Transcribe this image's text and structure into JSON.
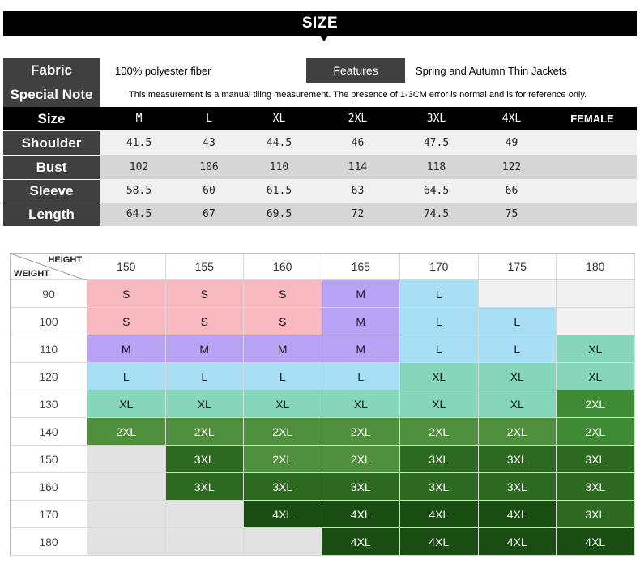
{
  "banner": {
    "title": "SIZE"
  },
  "info": {
    "fabric_label": "Fabric",
    "fabric_value": "100% polyester fiber",
    "features_label": "Features",
    "features_value": "Spring and Autumn Thin Jackets",
    "note_label": "Special Note",
    "note_value": "This measurement is a manual tiling measurement. The presence of 1-3CM error is normal and is for reference only."
  },
  "size_table": {
    "size_label": "Size",
    "sizes": [
      "M",
      "L",
      "XL",
      "2XL",
      "3XL",
      "4XL"
    ],
    "gender": "FEMALE",
    "rows": [
      {
        "label": "Shoulder",
        "values": [
          "41.5",
          "43",
          "44.5",
          "46",
          "47.5",
          "49"
        ]
      },
      {
        "label": "Bust",
        "values": [
          "102",
          "106",
          "110",
          "114",
          "118",
          "122"
        ]
      },
      {
        "label": "Sleeve",
        "values": [
          "58.5",
          "60",
          "61.5",
          "63",
          "64.5",
          "66"
        ]
      },
      {
        "label": "Length",
        "values": [
          "64.5",
          "67",
          "69.5",
          "72",
          "74.5",
          "75"
        ]
      }
    ]
  },
  "chart": {
    "height_label": "HEIGHT",
    "weight_label": "WEIGHT",
    "heights": [
      "150",
      "155",
      "160",
      "165",
      "170",
      "175",
      "180"
    ],
    "weights": [
      "90",
      "100",
      "110",
      "120",
      "130",
      "140",
      "150",
      "160",
      "170",
      "180"
    ],
    "grid": [
      [
        "S",
        "S",
        "S",
        "M",
        "L",
        "",
        ""
      ],
      [
        "S",
        "S",
        "S",
        "M",
        "L",
        "L",
        ""
      ],
      [
        "M",
        "M",
        "M",
        "M",
        "L",
        "L",
        "XL"
      ],
      [
        "L",
        "L",
        "L",
        "L",
        "XL",
        "XL",
        "XL"
      ],
      [
        "XL",
        "XL",
        "XL",
        "XL",
        "XL",
        "XL",
        "2XL"
      ],
      [
        "2XL",
        "2XL",
        "2XL",
        "2XL",
        "2XL",
        "2XL",
        "2XL"
      ],
      [
        "",
        "3XL",
        "2XL",
        "2XL",
        "3XL",
        "3XL",
        "3XL"
      ],
      [
        "",
        "3XL",
        "3XL",
        "3XL",
        "3XL",
        "3XL",
        "3XL"
      ],
      [
        "",
        "",
        "4XL",
        "4XL",
        "4XL",
        "4XL",
        "3XL"
      ],
      [
        "",
        "",
        "",
        "4XL",
        "4XL",
        "4XL",
        "4XL"
      ]
    ],
    "colors": {
      "S": "#f8b8c0",
      "M": "#b8a2f4",
      "L": "#a8def4",
      "XL": "#86d6bc",
      "2XL": "#4f8f3e",
      "3XL": "#2e6a22",
      "4XL": "#194d12",
      "empty": "#e2e2e2"
    }
  }
}
